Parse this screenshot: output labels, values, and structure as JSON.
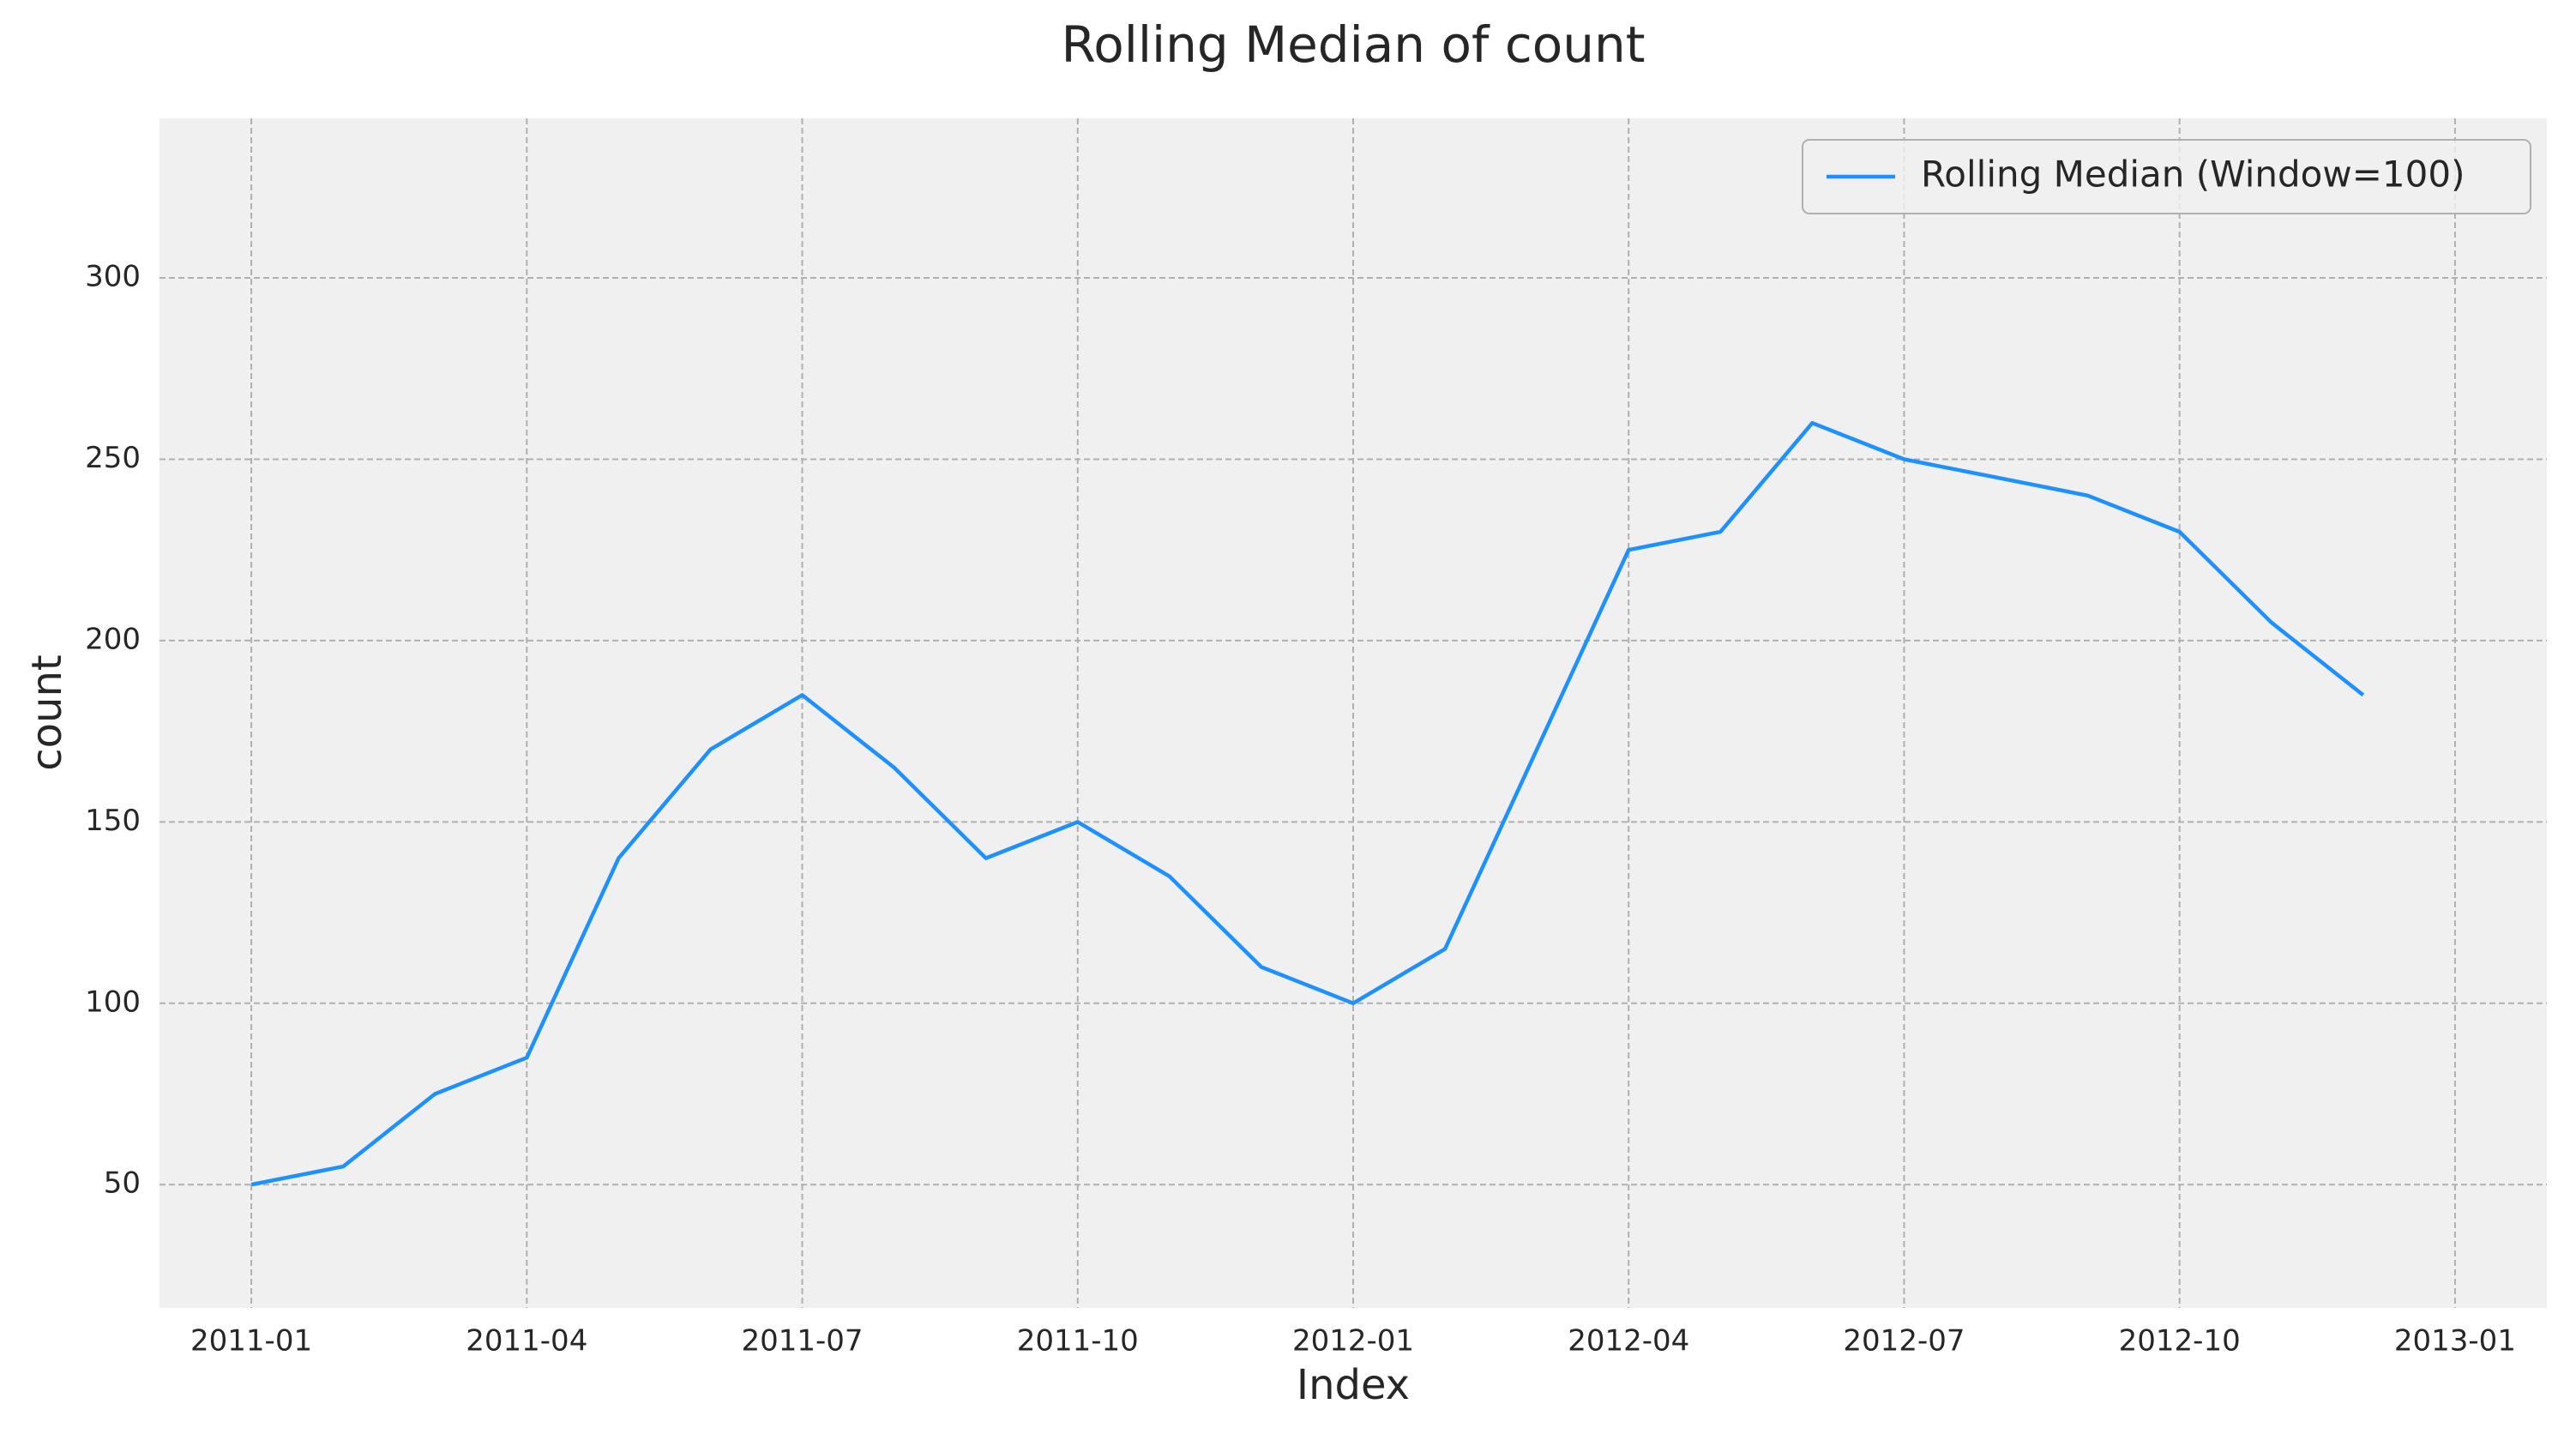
{
  "chart_data": {
    "type": "line",
    "title": "Rolling Median of count",
    "x_label": "Index",
    "y_label": "count",
    "x": [
      "2011-01",
      "2011-02",
      "2011-03",
      "2011-04",
      "2011-05",
      "2011-06",
      "2011-07",
      "2011-08",
      "2011-09",
      "2011-10",
      "2011-11",
      "2011-12",
      "2012-01",
      "2012-02",
      "2012-03",
      "2012-04",
      "2012-05",
      "2012-06",
      "2012-07",
      "2012-08",
      "2012-09",
      "2012-10",
      "2012-11",
      "2012-12"
    ],
    "series": [
      {
        "name": "Rolling Median (Window=100)",
        "color": "#1e90ff",
        "values": [
          50,
          55,
          75,
          85,
          140,
          170,
          185,
          165,
          140,
          150,
          135,
          110,
          100,
          115,
          170,
          225,
          230,
          260,
          250,
          245,
          240,
          230,
          205,
          185
        ]
      }
    ],
    "xlim": [
      "2010-12",
      "2013-02"
    ],
    "xticks": [
      "2011-01",
      "2011-04",
      "2011-07",
      "2011-10",
      "2012-01",
      "2012-04",
      "2012-07",
      "2012-10",
      "2013-01"
    ],
    "ylim": [
      16,
      344
    ],
    "yticks": [
      50,
      100,
      150,
      200,
      250,
      300
    ],
    "grid": true,
    "legend": "upper right"
  }
}
